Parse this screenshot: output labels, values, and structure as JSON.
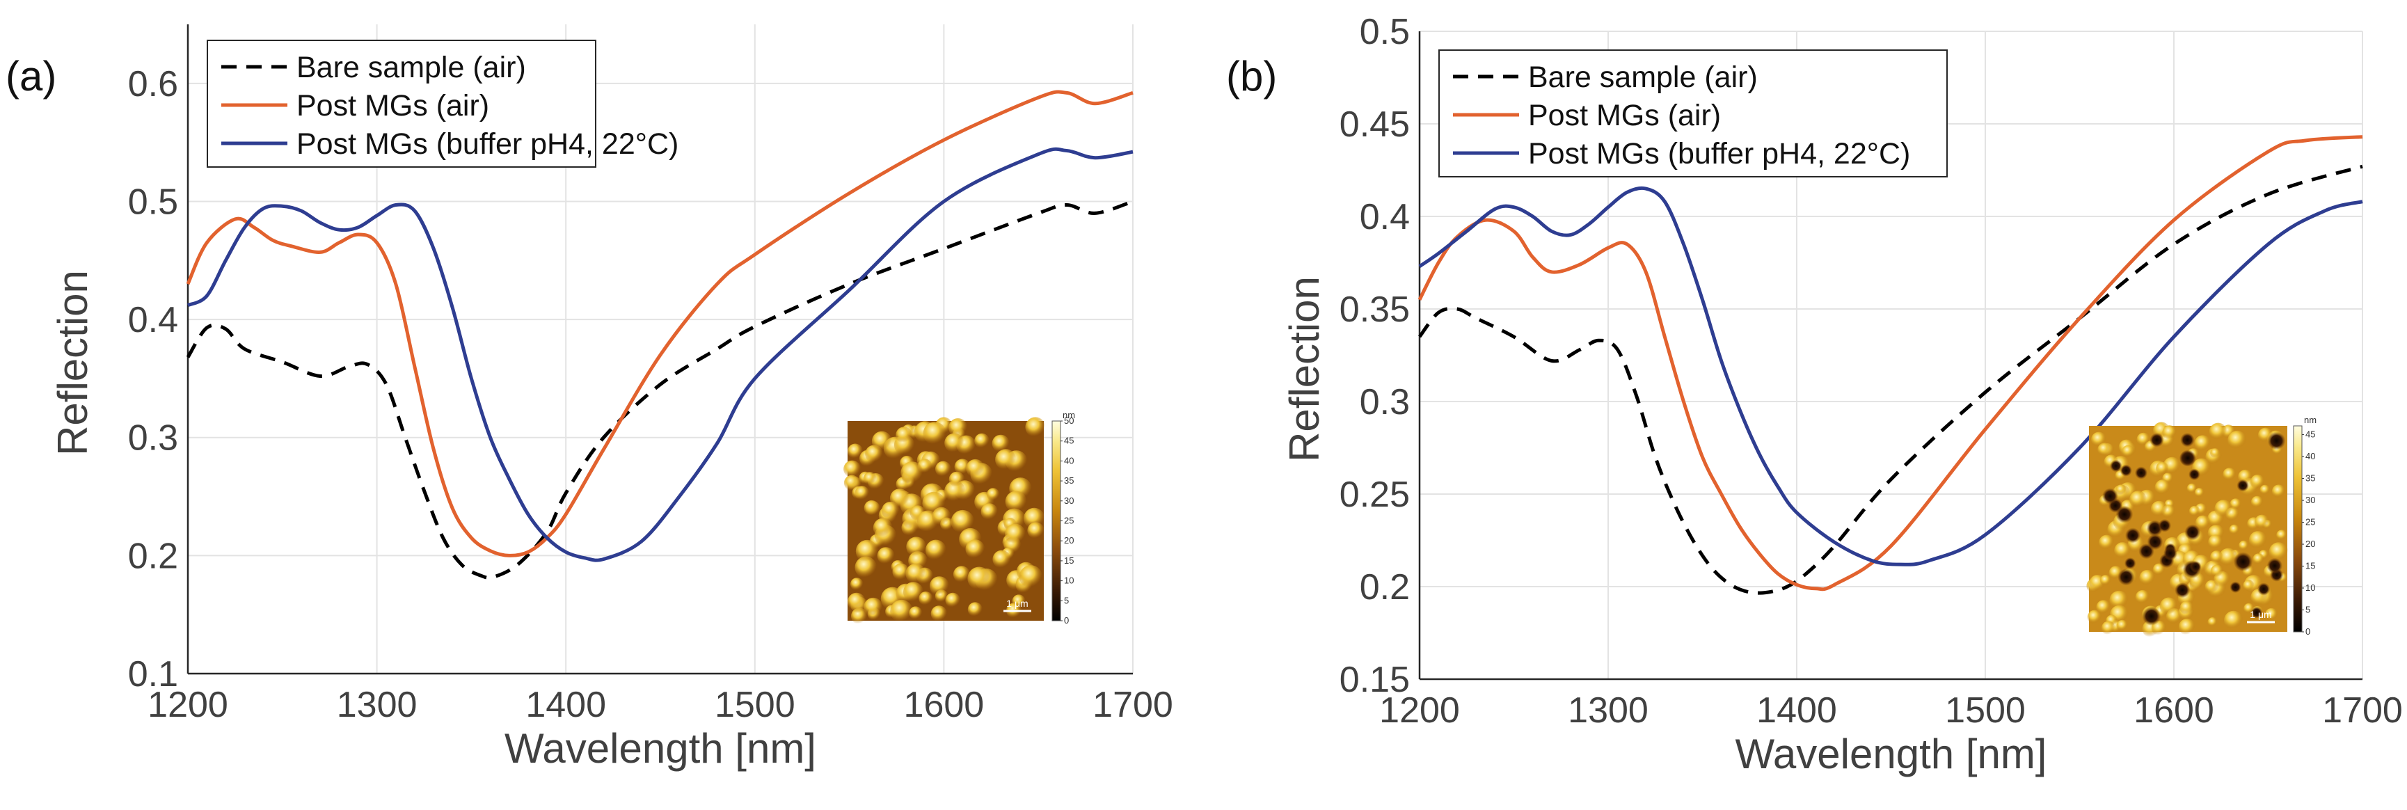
{
  "chart_data": [
    {
      "type": "line",
      "panel_label": "(a)",
      "title": "",
      "xlabel": "Wavelength [nm]",
      "ylabel": "Reflection",
      "xlim": [
        1200,
        1700
      ],
      "ylim": [
        0.1,
        0.65
      ],
      "xticks": [
        "1200",
        "1300",
        "1400",
        "1500",
        "1600",
        "1700"
      ],
      "yticks": [
        "0.1",
        "0.2",
        "0.3",
        "0.4",
        "0.5",
        "0.6"
      ],
      "grid": true,
      "legend_position": "top-left",
      "series": [
        {
          "name": "Bare sample (air)",
          "color": "#000000",
          "dash": "dashed",
          "x": [
            1200,
            1210,
            1220,
            1230,
            1250,
            1270,
            1285,
            1295,
            1305,
            1315,
            1325,
            1335,
            1345,
            1355,
            1362,
            1375,
            1390,
            1400,
            1420,
            1450,
            1480,
            1500,
            1550,
            1600,
            1650,
            1665,
            1680,
            1700
          ],
          "y": [
            0.368,
            0.393,
            0.392,
            0.375,
            0.364,
            0.352,
            0.36,
            0.362,
            0.345,
            0.3,
            0.255,
            0.215,
            0.192,
            0.183,
            0.182,
            0.193,
            0.22,
            0.253,
            0.3,
            0.345,
            0.375,
            0.394,
            0.43,
            0.46,
            0.49,
            0.497,
            0.49,
            0.5
          ]
        },
        {
          "name": "Post MGs (air)",
          "color": "#e2622e",
          "dash": "solid",
          "x": [
            1200,
            1210,
            1225,
            1235,
            1245,
            1255,
            1270,
            1280,
            1290,
            1300,
            1310,
            1320,
            1330,
            1340,
            1350,
            1360,
            1370,
            1380,
            1390,
            1400,
            1420,
            1450,
            1480,
            1500,
            1550,
            1600,
            1650,
            1665,
            1680,
            1700
          ],
          "y": [
            0.43,
            0.465,
            0.485,
            0.478,
            0.467,
            0.462,
            0.457,
            0.465,
            0.472,
            0.465,
            0.43,
            0.36,
            0.29,
            0.24,
            0.215,
            0.204,
            0.2,
            0.203,
            0.215,
            0.235,
            0.29,
            0.37,
            0.43,
            0.455,
            0.507,
            0.552,
            0.588,
            0.592,
            0.583,
            0.592
          ]
        },
        {
          "name": "Post MGs (buffer pH4, 22°C)",
          "color": "#2e3d91",
          "dash": "solid",
          "x": [
            1200,
            1210,
            1220,
            1230,
            1240,
            1250,
            1260,
            1270,
            1280,
            1290,
            1300,
            1310,
            1320,
            1330,
            1340,
            1350,
            1360,
            1370,
            1380,
            1390,
            1400,
            1410,
            1420,
            1440,
            1460,
            1480,
            1500,
            1550,
            1600,
            1650,
            1665,
            1680,
            1700
          ],
          "y": [
            0.412,
            0.42,
            0.45,
            0.478,
            0.494,
            0.496,
            0.492,
            0.482,
            0.476,
            0.478,
            0.488,
            0.497,
            0.492,
            0.46,
            0.41,
            0.35,
            0.3,
            0.265,
            0.235,
            0.215,
            0.203,
            0.198,
            0.197,
            0.212,
            0.25,
            0.295,
            0.35,
            0.425,
            0.5,
            0.54,
            0.543,
            0.537,
            0.542
          ]
        }
      ],
      "inset": {
        "description": "AFM height image",
        "colorbar_unit": "nm",
        "colorbar_ticks": [
          "0",
          "5",
          "10",
          "15",
          "20",
          "25",
          "30",
          "35",
          "40",
          "45",
          "50"
        ],
        "colorbar_max": 50,
        "scale_label": "1 μm"
      }
    },
    {
      "type": "line",
      "panel_label": "(b)",
      "title": "",
      "xlabel": "Wavelength [nm]",
      "ylabel": "Reflection",
      "xlim": [
        1200,
        1700
      ],
      "ylim": [
        0.15,
        0.5
      ],
      "xticks": [
        "1200",
        "1300",
        "1400",
        "1500",
        "1600",
        "1700"
      ],
      "yticks": [
        "0.15",
        "0.2",
        "0.25",
        "0.3",
        "0.35",
        "0.4",
        "0.45",
        "0.5"
      ],
      "grid": true,
      "legend_position": "top-left",
      "series": [
        {
          "name": "Bare sample (air)",
          "color": "#000000",
          "dash": "dashed",
          "x": [
            1200,
            1210,
            1220,
            1230,
            1250,
            1270,
            1285,
            1295,
            1305,
            1315,
            1325,
            1335,
            1345,
            1355,
            1365,
            1375,
            1385,
            1395,
            1405,
            1420,
            1450,
            1500,
            1550,
            1600,
            1650,
            1700
          ],
          "y": [
            0.335,
            0.348,
            0.35,
            0.345,
            0.335,
            0.322,
            0.328,
            0.333,
            0.328,
            0.303,
            0.27,
            0.245,
            0.225,
            0.21,
            0.201,
            0.197,
            0.197,
            0.2,
            0.207,
            0.222,
            0.258,
            0.305,
            0.345,
            0.385,
            0.412,
            0.427
          ]
        },
        {
          "name": "Post MGs (air)",
          "color": "#e2622e",
          "dash": "solid",
          "x": [
            1200,
            1210,
            1220,
            1235,
            1250,
            1260,
            1270,
            1285,
            1300,
            1310,
            1320,
            1330,
            1340,
            1350,
            1360,
            1370,
            1380,
            1390,
            1400,
            1410,
            1420,
            1450,
            1500,
            1550,
            1600,
            1650,
            1670,
            1700
          ],
          "y": [
            0.355,
            0.375,
            0.389,
            0.398,
            0.392,
            0.378,
            0.37,
            0.374,
            0.383,
            0.385,
            0.37,
            0.335,
            0.3,
            0.27,
            0.25,
            0.232,
            0.218,
            0.207,
            0.201,
            0.199,
            0.201,
            0.222,
            0.285,
            0.345,
            0.398,
            0.435,
            0.441,
            0.443
          ]
        },
        {
          "name": "Post MGs (buffer pH4, 22°C)",
          "color": "#2e3d91",
          "dash": "solid",
          "x": [
            1200,
            1210,
            1225,
            1240,
            1250,
            1260,
            1270,
            1280,
            1290,
            1300,
            1310,
            1320,
            1330,
            1340,
            1350,
            1360,
            1370,
            1380,
            1390,
            1400,
            1420,
            1440,
            1455,
            1470,
            1500,
            1550,
            1600,
            1650,
            1680,
            1700
          ],
          "y": [
            0.373,
            0.38,
            0.392,
            0.404,
            0.405,
            0.4,
            0.392,
            0.39,
            0.396,
            0.405,
            0.413,
            0.415,
            0.408,
            0.385,
            0.355,
            0.322,
            0.295,
            0.272,
            0.254,
            0.24,
            0.224,
            0.214,
            0.212,
            0.214,
            0.228,
            0.275,
            0.335,
            0.385,
            0.403,
            0.408
          ]
        }
      ],
      "inset": {
        "description": "AFM height image",
        "colorbar_unit": "nm",
        "colorbar_ticks": [
          "0",
          "5",
          "10",
          "15",
          "20",
          "25",
          "30",
          "35",
          "40",
          "45"
        ],
        "colorbar_max": 47,
        "scale_label": "1 μm"
      }
    }
  ]
}
